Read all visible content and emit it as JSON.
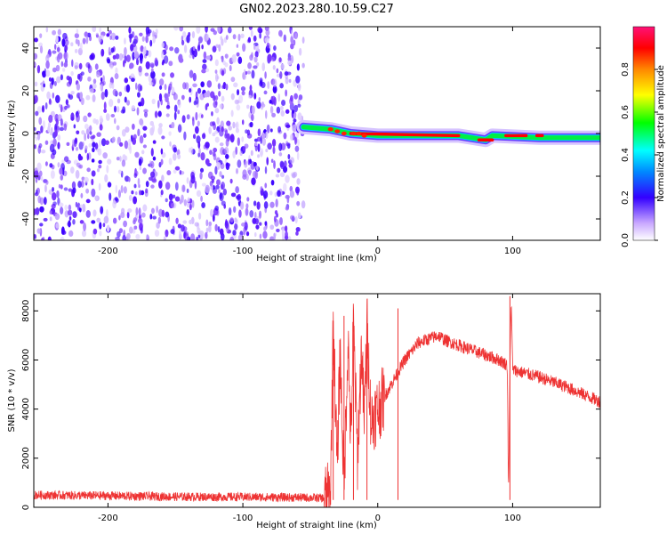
{
  "title": "GN02.2023.280.10.59.C27",
  "chart_data": [
    {
      "type": "heatmap",
      "xlabel": "Height of straight line (km)",
      "ylabel": "Frequency (Hz)",
      "xlim": [
        -255,
        165
      ],
      "ylim": [
        -50,
        50
      ],
      "xticks": [
        -200,
        -100,
        0,
        100
      ],
      "yticks": [
        -40,
        -20,
        0,
        20,
        40
      ],
      "noise_region": {
        "x": [
          -255,
          -55
        ],
        "y": [
          -50,
          50
        ]
      },
      "signal_band_center_hz": [
        {
          "x": -55,
          "y": 3
        },
        {
          "x": -35,
          "y": 2
        },
        {
          "x": -20,
          "y": 0
        },
        {
          "x": 0,
          "y": -1
        },
        {
          "x": 60,
          "y": -1
        },
        {
          "x": 80,
          "y": -3
        },
        {
          "x": 85,
          "y": -1
        },
        {
          "x": 120,
          "y": -2
        },
        {
          "x": 165,
          "y": -2
        }
      ],
      "colorbar": {
        "label": "Normalized spectral amplitude",
        "ticks": [
          "0.0",
          "0.2",
          "0.4",
          "0.6",
          "0.8"
        ],
        "range": [
          0,
          1
        ],
        "colormap": "rainbow"
      }
    },
    {
      "type": "line",
      "xlabel": "Height of straight line (km)",
      "ylabel": "SNR (10 * v/v)",
      "xlim": [
        -255,
        165
      ],
      "ylim": [
        0,
        8700
      ],
      "xticks": [
        -200,
        -100,
        0,
        100
      ],
      "yticks": [
        0,
        2000,
        4000,
        6000,
        8000
      ],
      "series": [
        {
          "color": "#ee3333",
          "x": [
            -255,
            -200,
            -150,
            -100,
            -60,
            -40,
            -35,
            -33,
            -30,
            -28,
            -25,
            -22,
            -20,
            -18,
            -15,
            -12,
            -10,
            -8,
            -5,
            0,
            10,
            20,
            30,
            40,
            45,
            50,
            60,
            80,
            90,
            96,
            97,
            98,
            99,
            100,
            120,
            140,
            165
          ],
          "y": [
            500,
            470,
            430,
            420,
            400,
            380,
            500,
            7600,
            1500,
            6500,
            800,
            7000,
            2600,
            7500,
            2000,
            6500,
            3500,
            7500,
            3500,
            4000,
            5000,
            6000,
            6700,
            6900,
            7000,
            6800,
            6600,
            6200,
            6000,
            5800,
            600,
            5700,
            8500,
            5600,
            5300,
            4900,
            4300
          ]
        }
      ]
    }
  ]
}
